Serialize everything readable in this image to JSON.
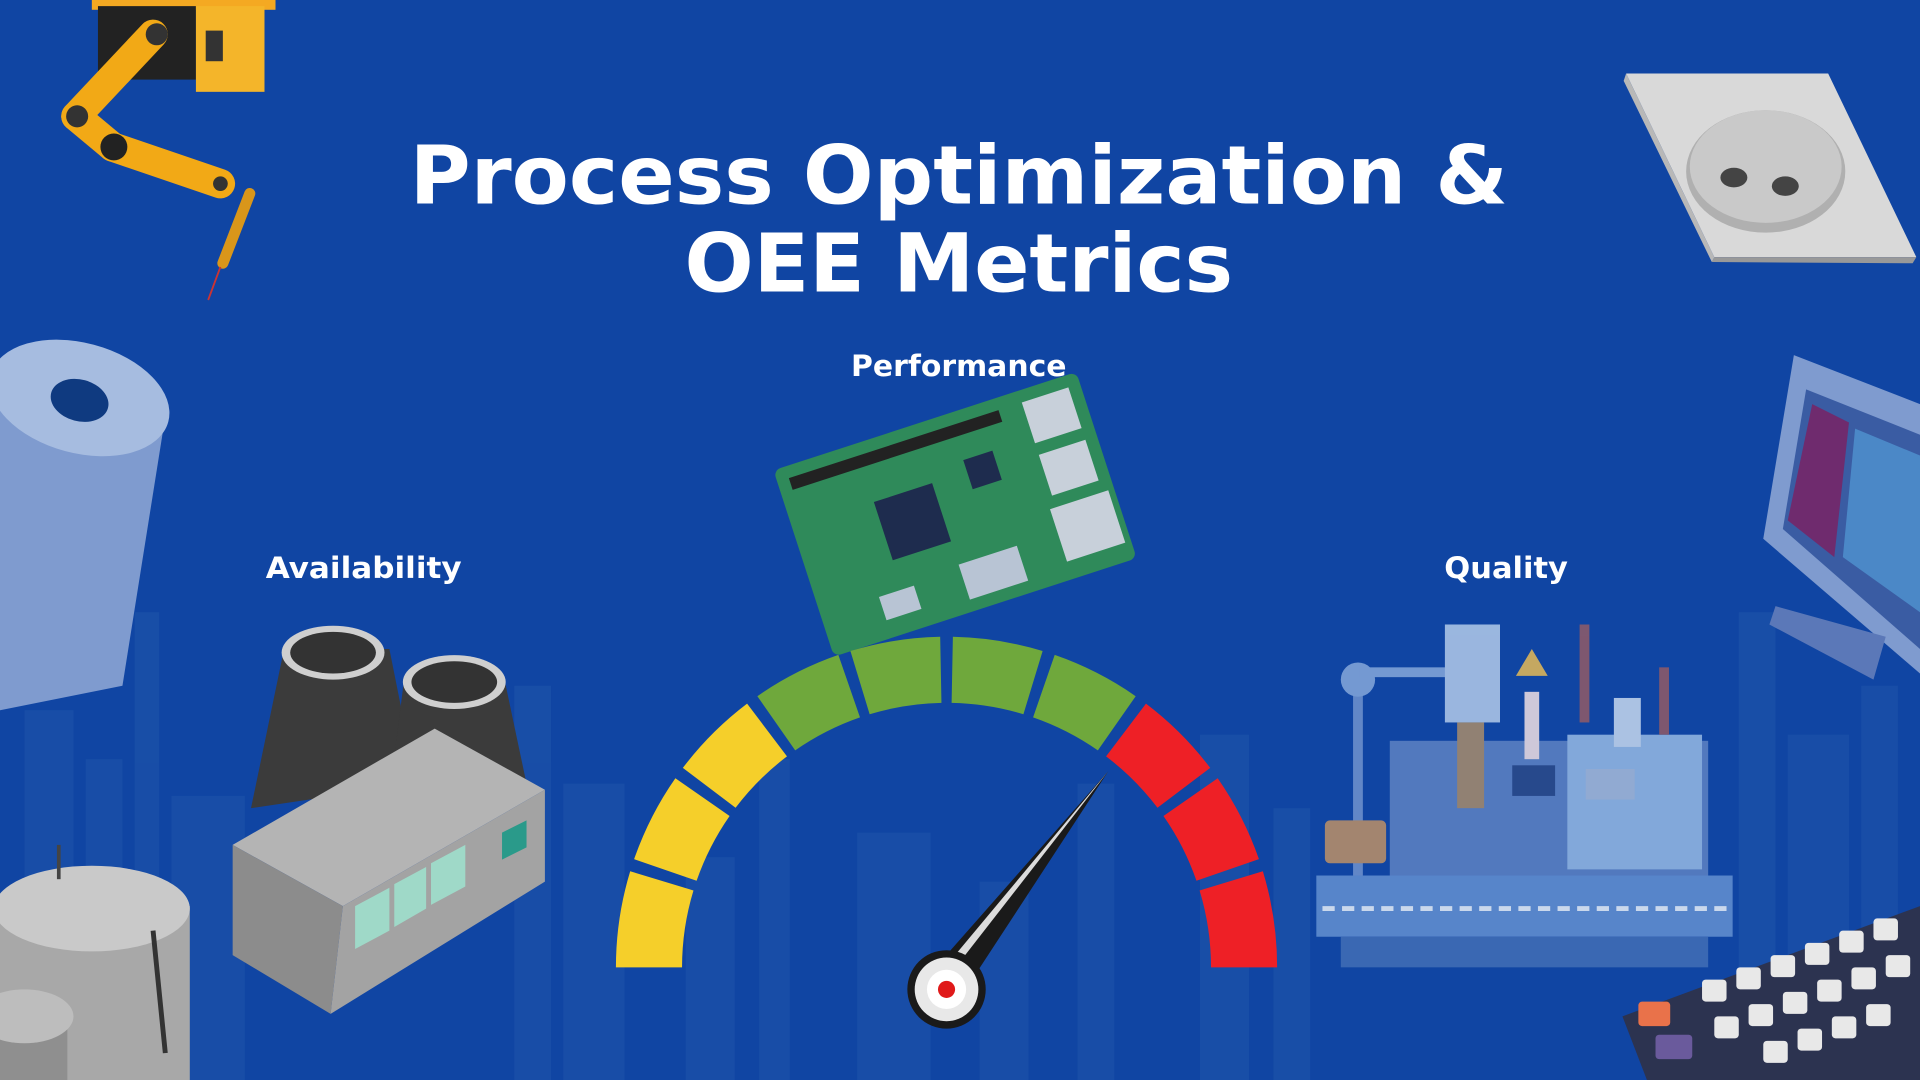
{
  "title_lines": [
    "Process Optimization &",
    "OEE Metrics"
  ],
  "labels": {
    "performance": "Performance",
    "availability": "Availability",
    "quality": "Quality"
  }
}
